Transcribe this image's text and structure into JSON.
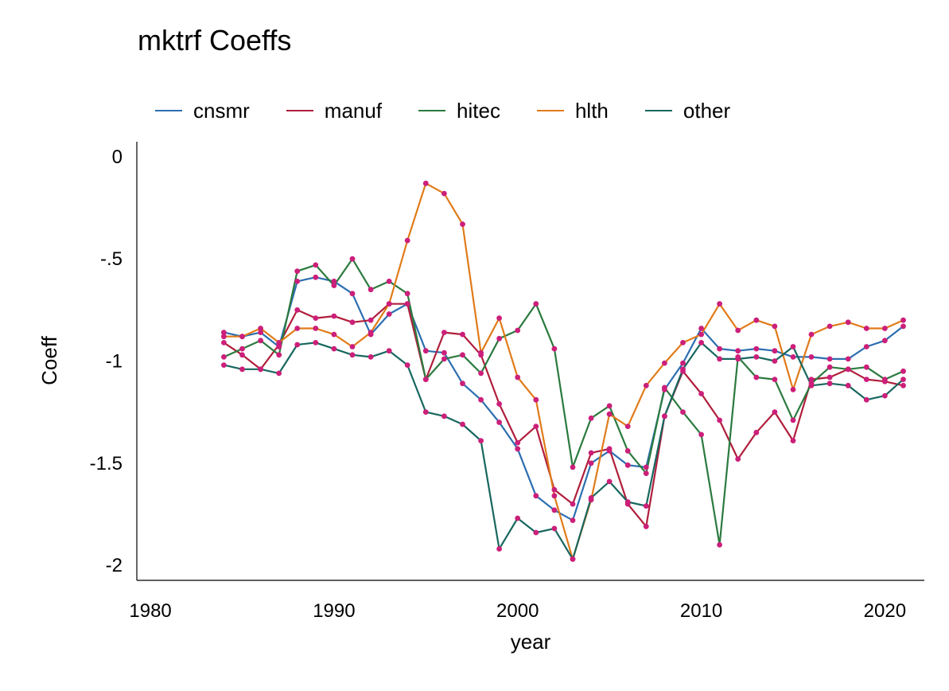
{
  "chart_data": {
    "type": "line",
    "title": "mktrf Coeffs",
    "xlabel": "year",
    "ylabel": "Coeff",
    "xlim": [
      1979,
      2021.5
    ],
    "ylim": [
      -2.07,
      0.07
    ],
    "x_ticks": [
      1980,
      1990,
      2000,
      2010,
      2020
    ],
    "y_ticks": [
      0,
      -0.5,
      -1,
      -1.5,
      -2
    ],
    "y_tick_labels": [
      "0",
      "-.5",
      "-1",
      "-1.5",
      "-2"
    ],
    "grid": false,
    "legend_position": "top",
    "marker_color": "#cc1f7a",
    "x": [
      1984,
      1985,
      1986,
      1987,
      1988,
      1989,
      1990,
      1991,
      1992,
      1993,
      1994,
      1995,
      1996,
      1997,
      1998,
      1999,
      2000,
      2001,
      2002,
      2003,
      2004,
      2005,
      2006,
      2007,
      2008,
      2009,
      2010,
      2011,
      2012,
      2013,
      2014,
      2015,
      2016,
      2017,
      2018,
      2019,
      2020,
      2021
    ],
    "series": [
      {
        "name": "cnsmr",
        "color": "#2c6eb0",
        "values": [
          -0.86,
          -0.88,
          -0.86,
          -0.93,
          -0.61,
          -0.59,
          -0.61,
          -0.67,
          -0.87,
          -0.77,
          -0.72,
          -0.95,
          -0.96,
          -1.11,
          -1.19,
          -1.3,
          -1.43,
          -1.66,
          -1.73,
          -1.78,
          -1.5,
          -1.44,
          -1.51,
          -1.52,
          -1.14,
          -1.01,
          -0.84,
          -0.94,
          -0.95,
          -0.94,
          -0.95,
          -0.98,
          -0.98,
          -0.99,
          -0.99,
          -0.93,
          -0.9,
          -0.83
        ]
      },
      {
        "name": "manuf",
        "color": "#b01e3c",
        "values": [
          -0.91,
          -0.97,
          -1.04,
          -0.92,
          -0.75,
          -0.79,
          -0.78,
          -0.81,
          -0.8,
          -0.72,
          -0.72,
          -1.09,
          -0.86,
          -0.87,
          -0.97,
          -1.21,
          -1.4,
          -1.32,
          -1.63,
          -1.7,
          -1.45,
          -1.43,
          -1.7,
          -1.81,
          -1.27,
          -1.05,
          -1.16,
          -1.29,
          -1.48,
          -1.35,
          -1.25,
          -1.39,
          -1.09,
          -1.08,
          -1.04,
          -1.09,
          -1.1,
          -1.12
        ]
      },
      {
        "name": "hitec",
        "color": "#2b7a3e",
        "values": [
          -0.98,
          -0.94,
          -0.9,
          -0.97,
          -0.56,
          -0.53,
          -0.63,
          -0.5,
          -0.65,
          -0.61,
          -0.67,
          -1.09,
          -0.99,
          -0.97,
          -1.06,
          -0.89,
          -0.85,
          -0.72,
          -0.94,
          -1.52,
          -1.28,
          -1.22,
          -1.44,
          -1.55,
          -1.13,
          -1.25,
          -1.36,
          -1.9,
          -0.98,
          -1.08,
          -1.09,
          -1.29,
          -1.11,
          -1.03,
          -1.04,
          -1.03,
          -1.09,
          -1.05
        ]
      },
      {
        "name": "hlth",
        "color": "#e07b1a",
        "values": [
          -0.88,
          -0.88,
          -0.84,
          -0.91,
          -0.84,
          -0.84,
          -0.87,
          -0.93,
          -0.86,
          -0.72,
          -0.41,
          -0.13,
          -0.18,
          -0.33,
          -0.96,
          -0.79,
          -1.08,
          -1.19,
          -1.66,
          -1.97,
          -1.68,
          -1.26,
          -1.32,
          -1.12,
          -1.01,
          -0.91,
          -0.87,
          -0.72,
          -0.85,
          -0.8,
          -0.83,
          -1.14,
          -0.87,
          -0.83,
          -0.81,
          -0.84,
          -0.84,
          -0.8
        ]
      },
      {
        "name": "other",
        "color": "#17675f",
        "values": [
          -1.02,
          -1.04,
          -1.04,
          -1.06,
          -0.92,
          -0.91,
          -0.94,
          -0.97,
          -0.98,
          -0.95,
          -1.02,
          -1.25,
          -1.27,
          -1.31,
          -1.39,
          -1.92,
          -1.77,
          -1.84,
          -1.82,
          -1.97,
          -1.67,
          -1.59,
          -1.69,
          -1.71,
          -1.27,
          -1.04,
          -0.91,
          -0.99,
          -0.99,
          -0.98,
          -1.0,
          -0.93,
          -1.12,
          -1.11,
          -1.12,
          -1.19,
          -1.17,
          -1.09
        ]
      }
    ]
  }
}
